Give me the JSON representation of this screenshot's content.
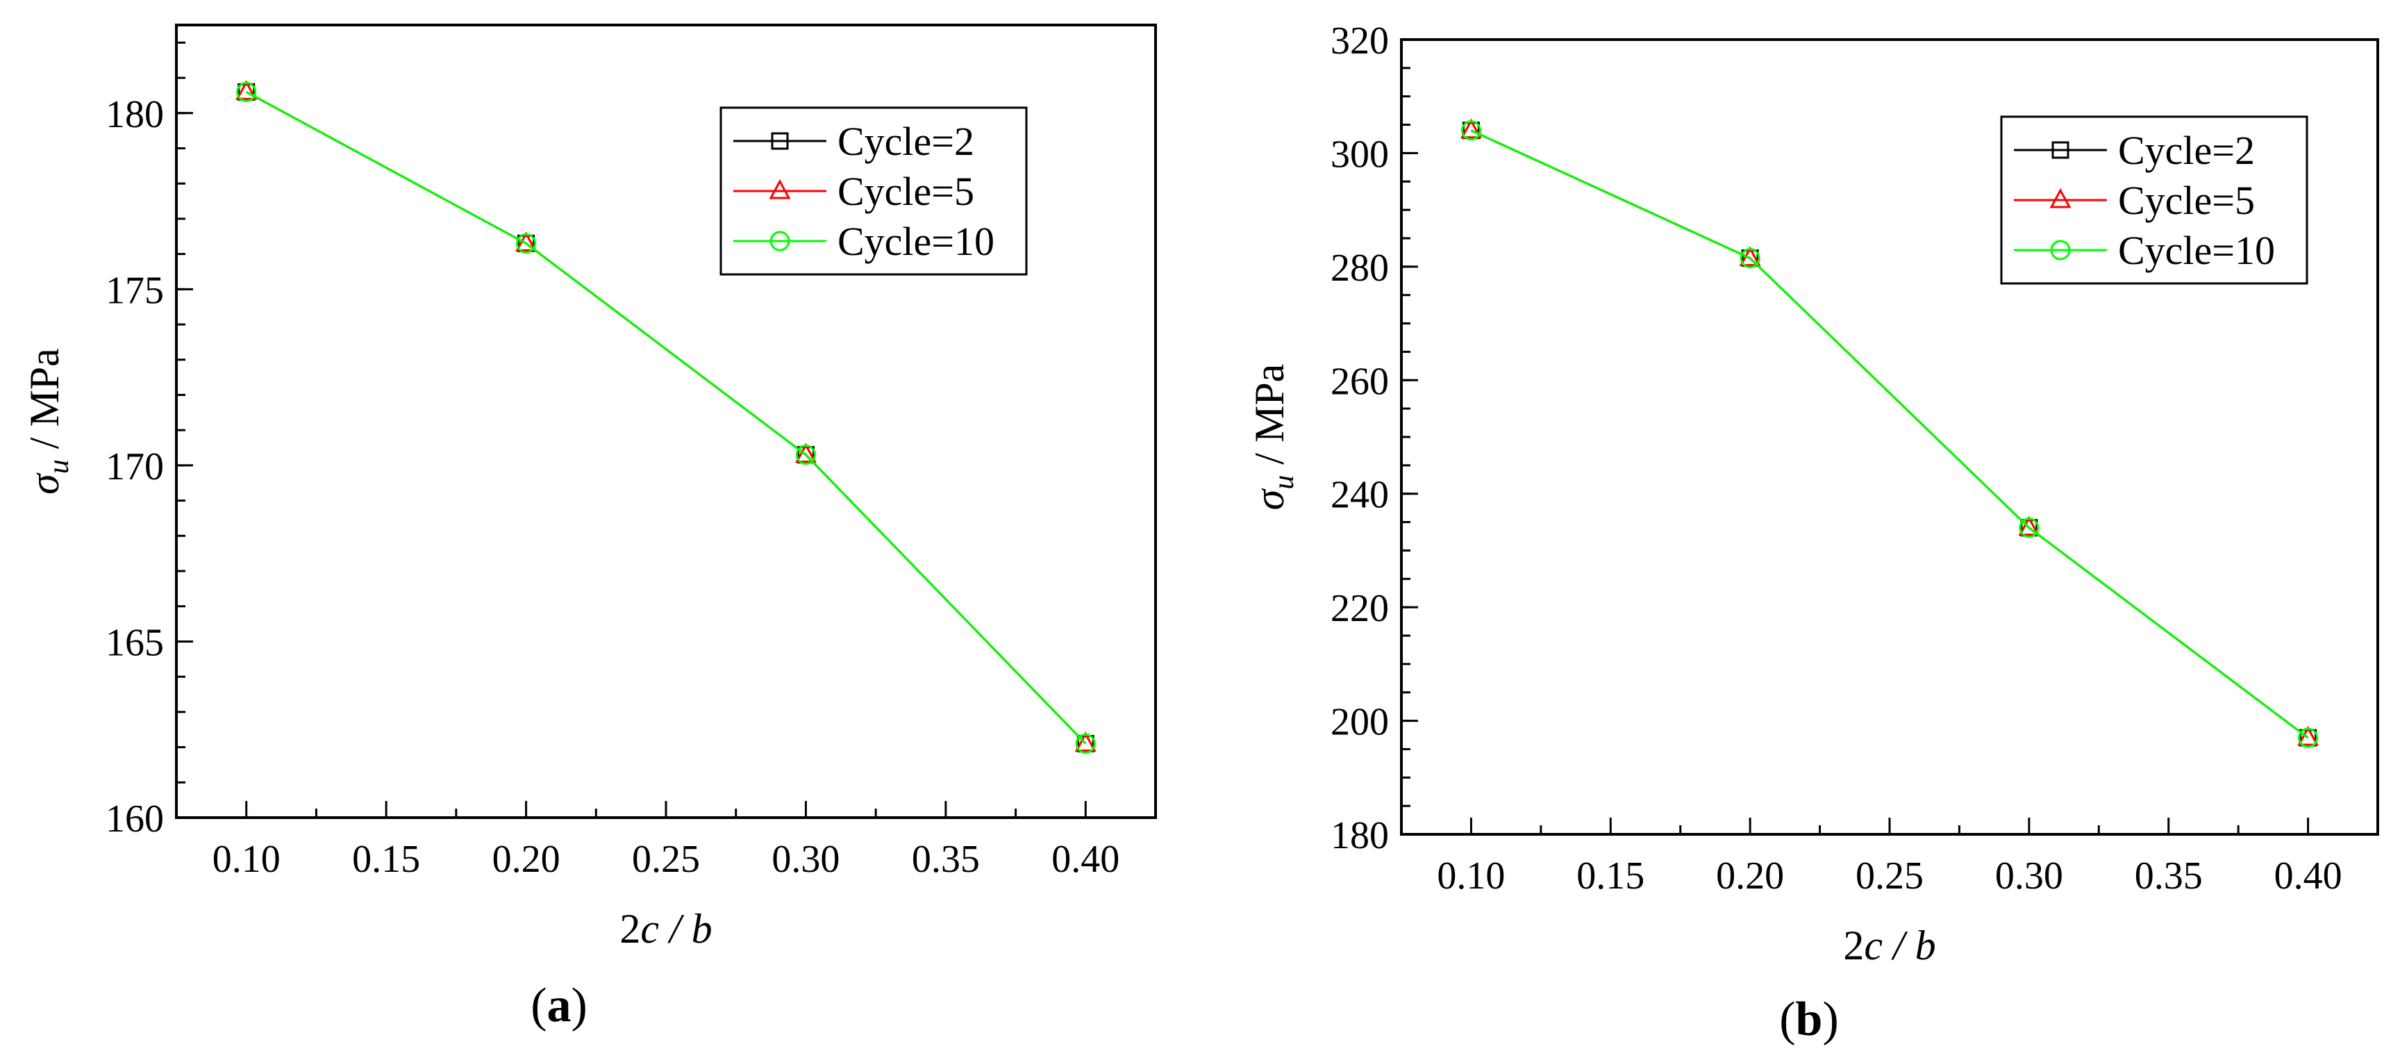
{
  "chart_data": [
    {
      "type": "line",
      "xlabel": {
        "main": "2c",
        "sep": " / ",
        "sub": "b"
      },
      "ylabel": {
        "symbol": "σ",
        "subscript": "u",
        "unit": " / MPa"
      },
      "caption": {
        "open": "(",
        "letter": "a",
        "close": ")"
      },
      "xlim": [
        0.075,
        0.425
      ],
      "ylim": [
        160,
        182.5
      ],
      "xticks": [
        {
          "value": 0.1,
          "label": "0.10"
        },
        {
          "value": 0.15,
          "label": "0.15"
        },
        {
          "value": 0.2,
          "label": "0.20"
        },
        {
          "value": 0.25,
          "label": "0.25"
        },
        {
          "value": 0.3,
          "label": "0.30"
        },
        {
          "value": 0.35,
          "label": "0.35"
        },
        {
          "value": 0.4,
          "label": "0.40"
        }
      ],
      "yticks": [
        {
          "value": 160,
          "label": "160"
        },
        {
          "value": 165,
          "label": "165"
        },
        {
          "value": 170,
          "label": "170"
        },
        {
          "value": 175,
          "label": "175"
        },
        {
          "value": 180,
          "label": "180"
        }
      ],
      "yminor_step": 1,
      "grid": false,
      "legend_position": "top-right",
      "series": [
        {
          "name": "Cycle=2",
          "marker": "square",
          "color": "#000000",
          "x": [
            0.1,
            0.2,
            0.3,
            0.4
          ],
          "y": [
            180.6,
            176.3,
            170.3,
            162.1
          ]
        },
        {
          "name": "Cycle=5",
          "marker": "triangle",
          "color": "#ff0000",
          "x": [
            0.1,
            0.2,
            0.3,
            0.4
          ],
          "y": [
            180.6,
            176.3,
            170.3,
            162.1
          ]
        },
        {
          "name": "Cycle=10",
          "marker": "circle",
          "color": "#00ff00",
          "x": [
            0.1,
            0.2,
            0.3,
            0.4
          ],
          "y": [
            180.6,
            176.3,
            170.3,
            162.1
          ]
        }
      ]
    },
    {
      "type": "line",
      "xlabel": {
        "main": "2c",
        "sep": " / ",
        "sub": "b"
      },
      "ylabel": {
        "symbol": "σ",
        "subscript": "u",
        "unit": " / MPa"
      },
      "caption": {
        "open": "(",
        "letter": "b",
        "close": ")"
      },
      "xlim": [
        0.075,
        0.425
      ],
      "ylim": [
        180,
        320
      ],
      "xticks": [
        {
          "value": 0.1,
          "label": "0.10"
        },
        {
          "value": 0.15,
          "label": "0.15"
        },
        {
          "value": 0.2,
          "label": "0.20"
        },
        {
          "value": 0.25,
          "label": "0.25"
        },
        {
          "value": 0.3,
          "label": "0.30"
        },
        {
          "value": 0.35,
          "label": "0.35"
        },
        {
          "value": 0.4,
          "label": "0.40"
        }
      ],
      "yticks": [
        {
          "value": 180,
          "label": "180"
        },
        {
          "value": 200,
          "label": "200"
        },
        {
          "value": 220,
          "label": "220"
        },
        {
          "value": 240,
          "label": "240"
        },
        {
          "value": 260,
          "label": "260"
        },
        {
          "value": 280,
          "label": "280"
        },
        {
          "value": 300,
          "label": "300"
        },
        {
          "value": 320,
          "label": "320"
        }
      ],
      "yminor_step": 5,
      "grid": false,
      "legend_position": "top-right",
      "series": [
        {
          "name": "Cycle=2",
          "marker": "square",
          "color": "#000000",
          "x": [
            0.1,
            0.2,
            0.3,
            0.4
          ],
          "y": [
            304,
            281.5,
            234,
            197
          ]
        },
        {
          "name": "Cycle=5",
          "marker": "triangle",
          "color": "#ff0000",
          "x": [
            0.1,
            0.2,
            0.3,
            0.4
          ],
          "y": [
            304,
            281.5,
            234,
            197
          ]
        },
        {
          "name": "Cycle=10",
          "marker": "circle",
          "color": "#00ff00",
          "x": [
            0.1,
            0.2,
            0.3,
            0.4
          ],
          "y": [
            304,
            281.5,
            234,
            197
          ]
        }
      ]
    }
  ]
}
